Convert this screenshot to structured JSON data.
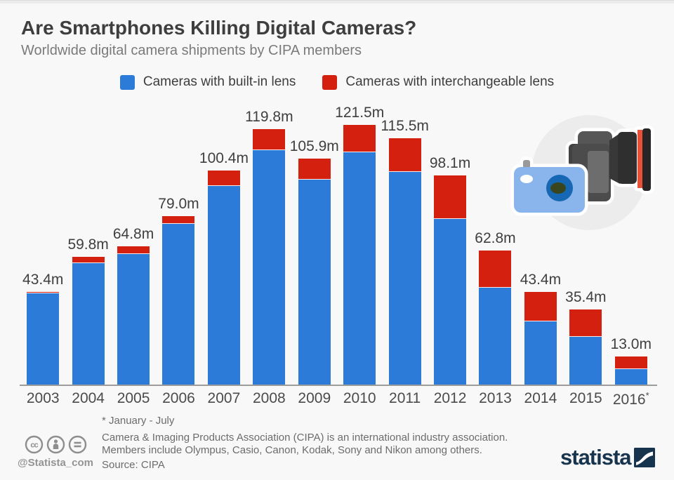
{
  "header": {
    "title": "Are Smartphones Killing Digital Cameras?",
    "subtitle": "Worldwide digital camera shipments by CIPA members"
  },
  "chart_data": {
    "type": "bar",
    "stacked": true,
    "title": "Are Smartphones Killing Digital Cameras?",
    "subtitle": "Worldwide digital camera shipments by CIPA members",
    "unit": "million units",
    "categories": [
      "2003",
      "2004",
      "2005",
      "2006",
      "2007",
      "2008",
      "2009",
      "2010",
      "2011",
      "2012",
      "2013",
      "2014",
      "2015",
      "2016*"
    ],
    "series": [
      {
        "name": "Cameras with built-in lens",
        "color": "#2d7bd9",
        "values": [
          42.7,
          56.8,
          61.2,
          75.4,
          93.2,
          109.9,
          96.0,
          108.8,
          99.6,
          77.7,
          45.3,
          29.6,
          22.5,
          7.1
        ]
      },
      {
        "name": "Cameras with interchangeable lens",
        "color": "#d3200f",
        "values": [
          0.7,
          3.0,
          3.6,
          3.6,
          7.2,
          9.9,
          9.9,
          12.7,
          15.9,
          20.4,
          17.5,
          13.8,
          12.9,
          5.9
        ]
      }
    ],
    "total_labels": [
      "43.4m",
      "59.8m",
      "64.8m",
      "79.0m",
      "100.4m",
      "119.8m",
      "105.9m",
      "121.5m",
      "115.5m",
      "98.1m",
      "62.8m",
      "43.4m",
      "35.4m",
      "13.0m"
    ],
    "legend_position": "top-center",
    "grid": false,
    "ylim": [
      0,
      130
    ]
  },
  "footer": {
    "footnote": "* January - July",
    "description_line1": "Camera & Imaging Products Association (CIPA) is an international industry association.",
    "description_line2": "Members include Olympus, Casio, Canon, Kodak, Sony and Nikon among others.",
    "source": "Source: CIPA",
    "handle": "@Statista_com",
    "brand": "statista"
  },
  "colors": {
    "built_in": "#2d7bd9",
    "interchangeable": "#d3200f",
    "background": "#f8f8f8",
    "axis": "#9c9c9c",
    "brand_navy": "#17344f"
  }
}
